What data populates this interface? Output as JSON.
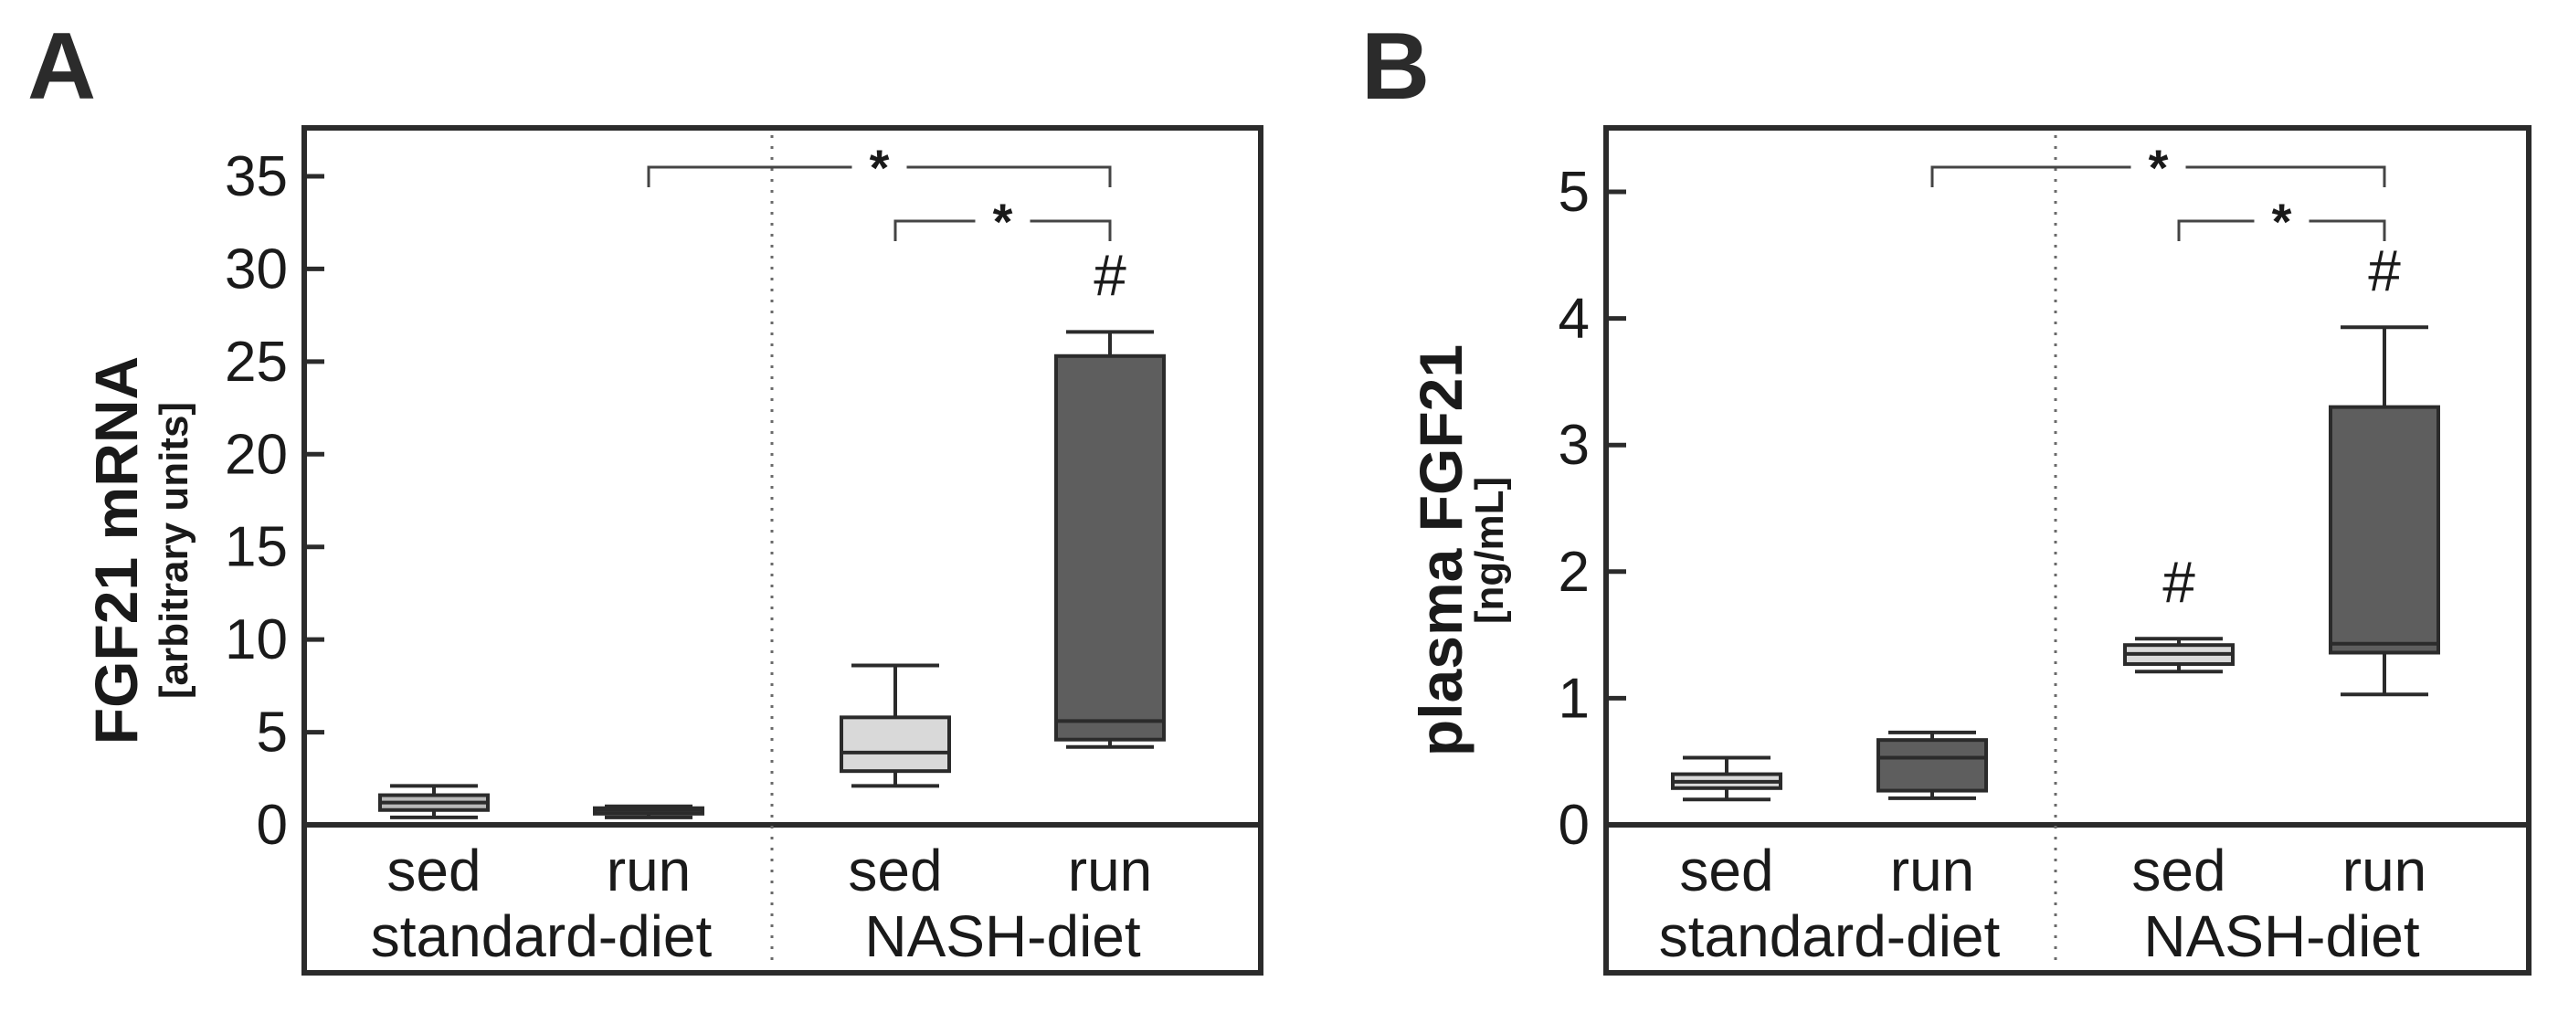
{
  "chart_data": [
    {
      "type": "box",
      "panel": "A",
      "ylabel": "FGF21 mRNA",
      "yunit": "[arbitrary units]",
      "ylim": [
        0,
        37
      ],
      "yticks": [
        "0",
        "5",
        "10",
        "15",
        "20",
        "25",
        "30",
        "35"
      ],
      "group_labels": [
        "standard-diet",
        "NASH-diet"
      ],
      "categories": [
        "sed",
        "run",
        "sed",
        "run"
      ],
      "boxes": [
        {
          "category": "sed",
          "group": "standard-diet",
          "min": 0.4,
          "q1": 0.8,
          "median": 1.2,
          "q3": 1.6,
          "max": 2.1,
          "color": "#b8b8b8"
        },
        {
          "category": "run",
          "group": "standard-diet",
          "min": 0.4,
          "q1": 0.6,
          "median": 0.8,
          "q3": 0.9,
          "max": 1.0,
          "color": "#4a4a4a"
        },
        {
          "category": "sed",
          "group": "NASH-diet",
          "min": 2.1,
          "q1": 2.9,
          "median": 3.9,
          "q3": 5.8,
          "max": 8.6,
          "color": "#d9d9d9"
        },
        {
          "category": "run",
          "group": "NASH-diet",
          "min": 4.2,
          "q1": 4.6,
          "median": 5.6,
          "q3": 25.3,
          "max": 26.6,
          "color": "#5e5e5e"
        }
      ],
      "hash_marks": [
        {
          "box": 3,
          "label": "#"
        }
      ],
      "brackets": [
        {
          "from": 1,
          "to": 3,
          "label": "*"
        },
        {
          "from": 2,
          "to": 3,
          "label": "*"
        }
      ]
    },
    {
      "type": "box",
      "panel": "B",
      "ylabel": "plasma FGF21",
      "yunit": "[ng/mL]",
      "ylim": [
        0,
        5.5
      ],
      "yticks": [
        "0",
        "1",
        "2",
        "3",
        "4",
        "5"
      ],
      "group_labels": [
        "standard-diet",
        "NASH-diet"
      ],
      "categories": [
        "sed",
        "run",
        "sed",
        "run"
      ],
      "boxes": [
        {
          "category": "sed",
          "group": "standard-diet",
          "min": 0.2,
          "q1": 0.29,
          "median": 0.34,
          "q3": 0.4,
          "max": 0.53,
          "color": "#d9d9d9"
        },
        {
          "category": "run",
          "group": "standard-diet",
          "min": 0.21,
          "q1": 0.27,
          "median": 0.53,
          "q3": 0.67,
          "max": 0.73,
          "color": "#5e5e5e"
        },
        {
          "category": "sed",
          "group": "NASH-diet",
          "min": 1.21,
          "q1": 1.27,
          "median": 1.35,
          "q3": 1.42,
          "max": 1.47,
          "color": "#d9d9d9"
        },
        {
          "category": "run",
          "group": "NASH-diet",
          "min": 1.03,
          "q1": 1.36,
          "median": 1.43,
          "q3": 3.3,
          "max": 3.93,
          "color": "#5e5e5e"
        }
      ],
      "hash_marks": [
        {
          "box": 2,
          "label": "#"
        },
        {
          "box": 3,
          "label": "#"
        }
      ],
      "brackets": [
        {
          "from": 1,
          "to": 3,
          "label": "*"
        },
        {
          "from": 2,
          "to": 3,
          "label": "*"
        }
      ]
    }
  ]
}
